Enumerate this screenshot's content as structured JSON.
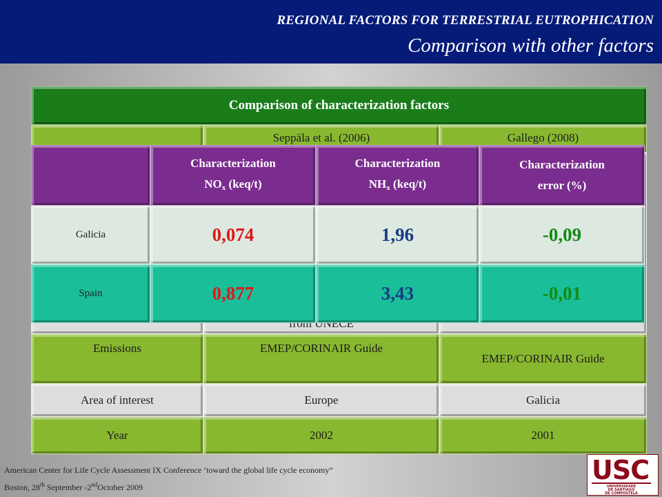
{
  "header": {
    "title": "REGIONAL FACTORS FOR TERRESTRIAL EUTROPHICATION",
    "subtitle": "Comparison with other factors"
  },
  "table": {
    "title": "Comparison of characterization factors",
    "col_headers": [
      "Seppäla et al. (2006)",
      "Gallego (2008)"
    ],
    "partial_text": "from UNECE",
    "rows": [
      {
        "label": "Emissions",
        "col1": "EMEP/CORINAIR Guide",
        "col2": "EMEP/CORINAIR Guide"
      },
      {
        "label": "Area of interest",
        "col1": "Europe",
        "col2": "Galicia"
      },
      {
        "label": "Year",
        "col1": "2002",
        "col2": "2001"
      }
    ]
  },
  "overlay": {
    "headers": [
      {
        "text": "Characterization",
        "line2": "NO",
        "sub": "x",
        "unit": "(keq/t)"
      },
      {
        "text": "Characterization",
        "line2": "NH",
        "sub": "x",
        "unit": "(keq/t)"
      },
      {
        "text": "Characterization",
        "line2": "error (%)"
      }
    ],
    "rows": [
      {
        "label": "Galicia",
        "values": [
          "0,074",
          "1,96",
          "-0,09"
        ]
      },
      {
        "label": "Spain",
        "values": [
          "0,877",
          "3,43",
          "-0,01"
        ]
      }
    ]
  },
  "footer": {
    "line1": "American Center for Life Cycle Assessment IX Conference ‘toward the global life cycle economy”",
    "line2_a": "Boston, 28",
    "line2_sup1": "th",
    "line2_b": " September -2",
    "line2_sup2": "nd",
    "line2_c": "October 2009"
  },
  "logo": {
    "letters": "USC",
    "line1": "UNIVERSIDADE",
    "line2": "DE SANTIAGO",
    "line3": "DE COMPOSTELA"
  }
}
